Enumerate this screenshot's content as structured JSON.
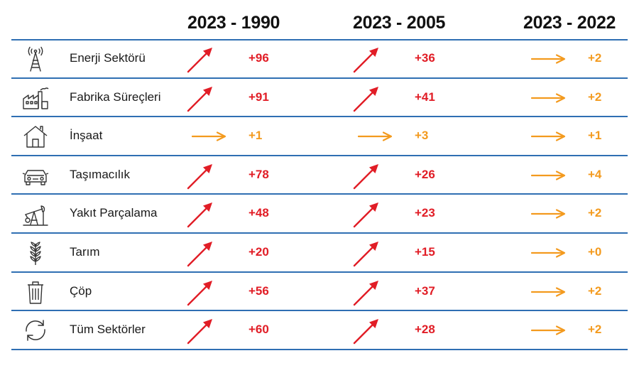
{
  "columns": [
    "2023 - 1990",
    "2023 - 2005",
    "2023 - 2022"
  ],
  "colors": {
    "increase": "#e11d26",
    "stable": "#f39a1e",
    "divider": "#2f6fb3"
  },
  "rows": [
    {
      "label": "Enerji Sektörü",
      "icon": "transmission-tower-icon",
      "values": [
        "+96",
        "+36",
        "+2"
      ],
      "trends": [
        "up",
        "up",
        "flat"
      ]
    },
    {
      "label": "Fabrika Süreçleri",
      "icon": "factory-icon",
      "values": [
        "+91",
        "+41",
        "+2"
      ],
      "trends": [
        "up",
        "up",
        "flat"
      ]
    },
    {
      "label": "İnşaat",
      "icon": "house-icon",
      "values": [
        "+1",
        "+3",
        "+1"
      ],
      "trends": [
        "flat",
        "flat",
        "flat"
      ]
    },
    {
      "label": "Taşımacılık",
      "icon": "car-icon",
      "values": [
        "+78",
        "+26",
        "+4"
      ],
      "trends": [
        "up",
        "up",
        "flat"
      ]
    },
    {
      "label": "Yakıt Parçalama",
      "icon": "oil-pump-icon",
      "values": [
        "+48",
        "+23",
        "+2"
      ],
      "trends": [
        "up",
        "up",
        "flat"
      ]
    },
    {
      "label": "Tarım",
      "icon": "wheat-icon",
      "values": [
        "+20",
        "+15",
        "+0"
      ],
      "trends": [
        "up",
        "up",
        "flat"
      ]
    },
    {
      "label": "Çöp",
      "icon": "trash-bin-icon",
      "values": [
        "+56",
        "+37",
        "+2"
      ],
      "trends": [
        "up",
        "up",
        "flat"
      ]
    },
    {
      "label": "Tüm Sektörler",
      "icon": "recycle-arrows-icon",
      "values": [
        "+60",
        "+28",
        "+2"
      ],
      "trends": [
        "up",
        "up",
        "flat"
      ]
    }
  ]
}
